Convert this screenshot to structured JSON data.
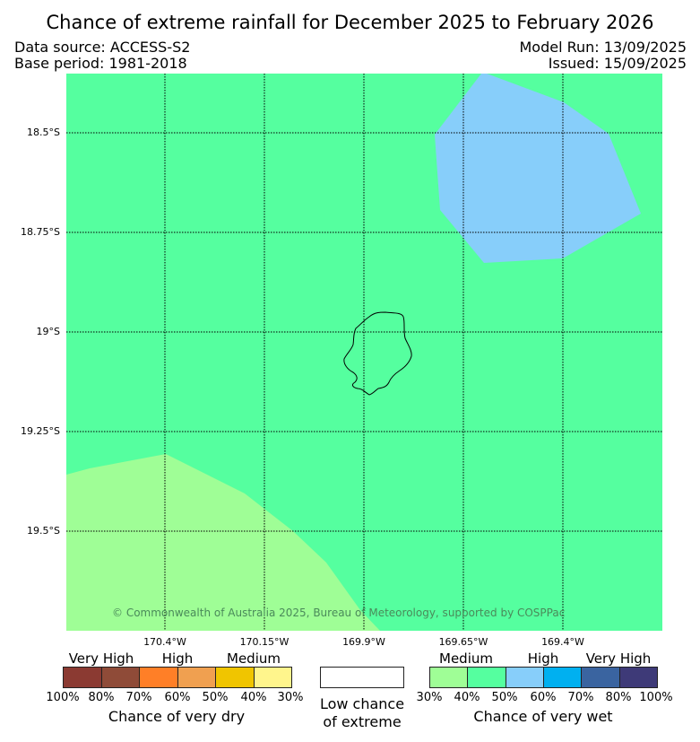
{
  "header": {
    "title": "Chance of extreme rainfall for December 2025 to February 2026",
    "data_source": "Data source: ACCESS-S2",
    "base_period": "Base period: 1981-2018",
    "model_run": "Model Run: 13/09/2025",
    "issued": "Issued: 15/09/2025"
  },
  "map": {
    "copyright": "© Commonwealth of Australia 2025, Bureau of Meteorology, supported by COSPPac",
    "lat_labels": [
      "18.5°S",
      "18.75°S",
      "19°S",
      "19.25°S",
      "19.5°S"
    ],
    "lon_labels": [
      "170.4°W",
      "170.15°W",
      "169.9°W",
      "169.65°W",
      "169.4°W"
    ],
    "colors": {
      "background_wet_medium": "#55ff9f",
      "wet_high": "#87cefa",
      "wet_low_medium": "#9ffe96"
    }
  },
  "legend": {
    "dry": {
      "categories": [
        "Very High",
        "High",
        "Medium"
      ],
      "ticks": [
        "100%",
        "80%",
        "70%",
        "60%",
        "50%",
        "40%",
        "30%"
      ],
      "colors": [
        "#8b3a32",
        "#8f4b38",
        "#ff7f27",
        "#f0a050",
        "#f0c500",
        "#fff58c"
      ],
      "title": "Chance of very dry"
    },
    "low": {
      "title_line1": "Low chance",
      "title_line2": "of extreme"
    },
    "wet": {
      "categories": [
        "Medium",
        "High",
        "Very High"
      ],
      "ticks": [
        "30%",
        "40%",
        "50%",
        "60%",
        "70%",
        "80%",
        "100%"
      ],
      "colors": [
        "#9ffe96",
        "#55ff9f",
        "#87cefa",
        "#00b0f0",
        "#3a64a0",
        "#3e3a78"
      ],
      "title": "Chance of very wet"
    }
  }
}
